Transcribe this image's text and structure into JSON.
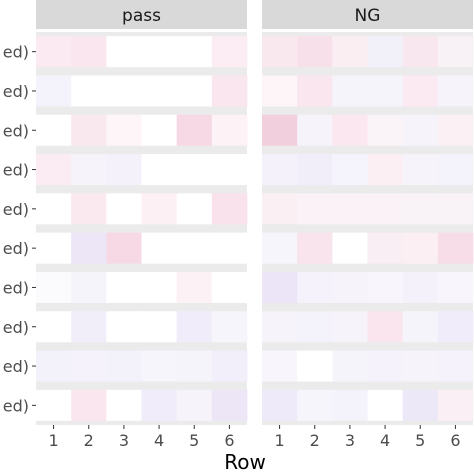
{
  "chart_data": {
    "type": "heatmap",
    "xlabel": "Row",
    "ylabel": "",
    "x_ticks": [
      "1",
      "2",
      "3",
      "4",
      "5",
      "6"
    ],
    "y_ticks": [
      "ed)",
      "ed)",
      "ed)",
      "ed)",
      "ed)",
      "ed)",
      "ed)",
      "ed)",
      "ed)",
      "ed)"
    ],
    "facets": [
      {
        "name": "pass",
        "cells": [
          [
            "#fbeaf1",
            "#f9e6ee",
            "#ffffff",
            "#ffffff",
            "#ffffff",
            "#fbedf3"
          ],
          [
            "#f4f3fb",
            "#ffffff",
            "#ffffff",
            "#ffffff",
            "#ffffff",
            "#fae6ee"
          ],
          [
            "#ffffff",
            "#fae8ef",
            "#fdf5f8",
            "#ffffff",
            "#f7d8e5",
            "#fdf2f6"
          ],
          [
            "#fbebf2",
            "#f6f3fb",
            "#f4f1fb",
            "#ffffff",
            "#ffffff",
            "#ffffff"
          ],
          [
            "#ffffff",
            "#fbe9f0",
            "#ffffff",
            "#fcf0f4",
            "#ffffff",
            "#f9e2ec"
          ],
          [
            "#ffffff",
            "#ece6f7",
            "#f6d9e5",
            "#ffffff",
            "#ffffff",
            "#ffffff"
          ],
          [
            "#fbfafd",
            "#f6f4fb",
            "#ffffff",
            "#ffffff",
            "#fcf2f6",
            "#ffffff"
          ],
          [
            "#ffffff",
            "#f1eefa",
            "#ffffff",
            "#ffffff",
            "#f1ecf9",
            "#f7f5fc"
          ],
          [
            "#f3f1fa",
            "#f5f2fb",
            "#f3f1fa",
            "#f7f5fc",
            "#f6f4fb",
            "#f2eefa"
          ],
          [
            "#ffffff",
            "#f9e6ee",
            "#ffffff",
            "#f0ecf9",
            "#f6f3fb",
            "#ece6f7"
          ]
        ]
      },
      {
        "name": "NG",
        "cells": [
          [
            "#fae8ef",
            "#f8e0eb",
            "#faeef3",
            "#f2f1fa",
            "#f9e7ef",
            "#f8f1f6"
          ],
          [
            "#fdf5f8",
            "#f9e6ee",
            "#f6f4fb",
            "#f6f4fb",
            "#fbeaf1",
            "#f6f3fb"
          ],
          [
            "#f1cfdd",
            "#f6f3fb",
            "#fae7ef",
            "#faf4f8",
            "#f6f3fb",
            "#fbf0f4"
          ],
          [
            "#f4f1fb",
            "#f1eefa",
            "#f5f3fb",
            "#fbeff4",
            "#f7f3fa",
            "#f4f2fa"
          ],
          [
            "#faf0f4",
            "#faf2f6",
            "#faf2f6",
            "#faf2f6",
            "#f9f3f7",
            "#f9f3f7"
          ],
          [
            "#f7f5fc",
            "#f9e3ec",
            "#ffffff",
            "#f9eef3",
            "#fbeff4",
            "#f7dde8"
          ],
          [
            "#ece5f8",
            "#f5f2fb",
            "#f6f3fb",
            "#f8f6fc",
            "#f4f1fa",
            "#f8f6fc"
          ],
          [
            "#f6f3fb",
            "#f4f2fb",
            "#f6f3fb",
            "#fae4ed",
            "#f6f4fb",
            "#f0ecf9"
          ],
          [
            "#f8f6fc",
            "#ffffff",
            "#f6f4fb",
            "#f5f2fb",
            "#f6f3fb",
            "#f5f2fb"
          ],
          [
            "#efeaf9",
            "#f7f5fc",
            "#f4f2fb",
            "#ffffff",
            "#ede8f8",
            "#faeff4"
          ]
        ]
      }
    ],
    "colors": {
      "panel_background": "#ebebeb",
      "strip_background": "#d9d9d9"
    }
  }
}
